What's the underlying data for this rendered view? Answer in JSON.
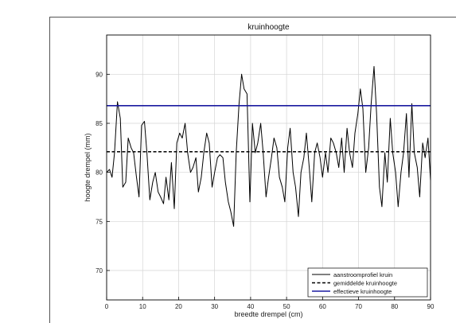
{
  "chart_data": {
    "type": "line",
    "title": "kruinhoogte",
    "xlabel": "breedte drempel (cm)",
    "ylabel": "hoogte drempel (mm)",
    "xlim": [
      0,
      90
    ],
    "ylim": [
      67,
      94
    ],
    "xticks": [
      "0",
      "10",
      "20",
      "30",
      "40",
      "50",
      "60",
      "70",
      "80",
      "90"
    ],
    "yticks": [
      "70",
      "75",
      "80",
      "85",
      "90"
    ],
    "grid": true,
    "legend_position": "bottom-right",
    "series": [
      {
        "name": "aanstroomprofiel kruin",
        "color": "#000000",
        "style": "solid",
        "x": [
          0,
          0.8,
          1.5,
          2.2,
          3,
          3.8,
          4.5,
          5.3,
          6,
          6.8,
          7.5,
          8.3,
          9,
          9.7,
          10.5,
          11.2,
          12,
          12.8,
          13.5,
          14.3,
          15,
          15.8,
          16.5,
          17.3,
          18,
          18.8,
          19.5,
          20.3,
          21,
          21.8,
          22.5,
          23.3,
          24,
          24.8,
          25.5,
          26.3,
          27,
          27.8,
          28.5,
          29.3,
          30,
          30.8,
          31.5,
          32.3,
          33,
          33.8,
          34.5,
          35.3,
          36,
          36.8,
          37.5,
          38.2,
          39,
          39.8,
          40.5,
          41.3,
          42,
          42.8,
          43.5,
          44.3,
          45,
          45.8,
          46.5,
          47.3,
          48,
          48.8,
          49.5,
          50.3,
          51,
          51.8,
          52.5,
          53.3,
          54,
          54.8,
          55.5,
          56.3,
          57,
          57.8,
          58.5,
          59.3,
          60,
          60.8,
          61.5,
          62.3,
          63,
          63.8,
          64.5,
          65.3,
          66,
          66.8,
          67.5,
          68.3,
          69,
          69.8,
          70.5,
          71.2,
          72,
          72.8,
          73.5,
          74.3,
          75,
          75.8,
          76.5,
          77.3,
          78,
          78.8,
          79.5,
          80.3,
          81,
          81.8,
          82.5,
          83.3,
          84,
          84.8,
          85.5,
          86.3,
          87,
          87.8,
          88.5,
          89.3,
          90
        ],
        "y": [
          80.0,
          80.3,
          79.5,
          82.0,
          87.2,
          85.5,
          78.5,
          79.0,
          83.5,
          82.5,
          82.0,
          79.5,
          77.5,
          84.8,
          85.2,
          82.0,
          77.2,
          79.0,
          80.0,
          78.0,
          77.5,
          76.8,
          79.5,
          77.2,
          81.0,
          76.3,
          83.0,
          84.0,
          83.5,
          85.0,
          82.0,
          80.0,
          80.5,
          81.5,
          78.0,
          79.5,
          82.0,
          84.0,
          83.0,
          78.5,
          80.0,
          81.5,
          81.8,
          81.5,
          79.0,
          77.0,
          76.0,
          74.5,
          82.0,
          87.0,
          90.0,
          88.5,
          88.0,
          77.0,
          85.0,
          82.0,
          83.0,
          85.0,
          82.0,
          77.5,
          79.5,
          81.5,
          83.5,
          82.5,
          79.5,
          78.5,
          77.0,
          82.5,
          84.5,
          80.0,
          78.5,
          75.5,
          80.0,
          81.5,
          84.0,
          80.5,
          77.0,
          82.0,
          83.0,
          81.5,
          79.5,
          82.0,
          80.0,
          83.5,
          83.0,
          82.0,
          80.5,
          83.5,
          80.0,
          84.5,
          82.0,
          80.5,
          84.0,
          86.0,
          88.5,
          86.5,
          80.0,
          82.5,
          87.0,
          90.8,
          86.0,
          78.5,
          76.5,
          82.0,
          79.0,
          85.5,
          82.0,
          80.0,
          76.5,
          80.0,
          82.0,
          86.0,
          79.5,
          87.0,
          82.0,
          80.5,
          77.5,
          83.0,
          81.5,
          83.5,
          79.2
        ]
      },
      {
        "name": "gemiddelde kruinhoogte",
        "color": "#000000",
        "style": "dashed",
        "x": [
          0,
          90
        ],
        "y": [
          82.1,
          82.1
        ]
      },
      {
        "name": "effectieve kruinhoogte",
        "color": "#1a1aa0",
        "style": "solid",
        "x": [
          0,
          90
        ],
        "y": [
          86.8,
          86.8
        ]
      }
    ]
  }
}
